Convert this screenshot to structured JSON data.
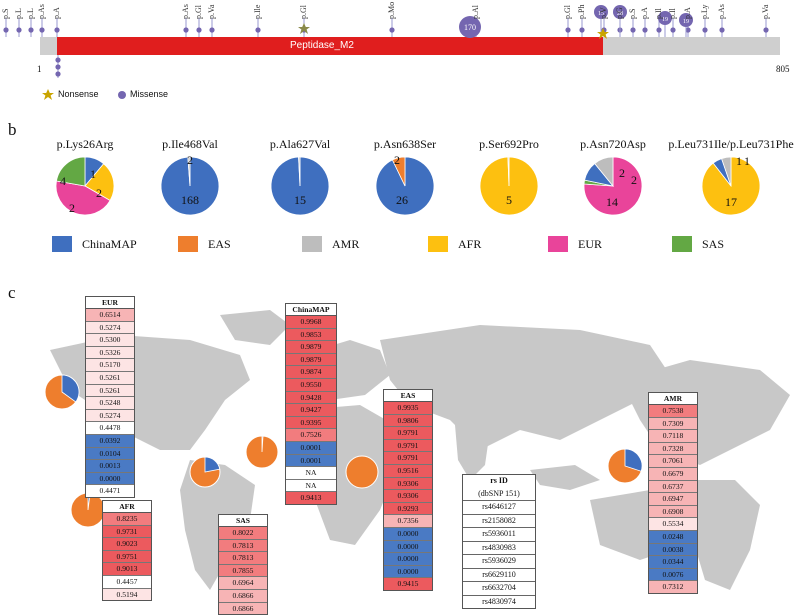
{
  "panel_a": {
    "domain_label": "Peptidase_M2",
    "start": "1",
    "end": "805",
    "legend": {
      "nonsense": "Nonsense",
      "missense": "Missense"
    },
    "top_labels": [
      "p.S",
      "p.L",
      "p.L",
      "p.As",
      "p.A",
      "p.As",
      "p.Gl",
      "p.Va",
      "p.Ile",
      "p.Gl",
      "p.Mo",
      "p.Al",
      "p.Gl",
      "p.Ph",
      "p.V",
      "p.G",
      "p.S",
      "p.A",
      "p.Il",
      "p.Il",
      "p.A",
      "p.Ly",
      "p.As",
      "p.Va"
    ],
    "bubble_counts": [
      "170",
      "15",
      "28",
      "19",
      "19"
    ],
    "colors": {
      "domain": "#e01e1e",
      "backbone": "#cfcfcf",
      "missense": "#7466b0",
      "nonsense": "#c9a400"
    }
  },
  "panel_b": {
    "letter": "b",
    "pies": [
      {
        "title": "p.Lys26Arg",
        "labels": [
          "1",
          "2",
          "2",
          "4"
        ]
      },
      {
        "title": "p.Ile468Val",
        "labels": [
          "2",
          "168"
        ]
      },
      {
        "title": "p.Ala627Val",
        "labels": [
          "15"
        ]
      },
      {
        "title": "p.Asn638Ser",
        "labels": [
          "2",
          "26"
        ]
      },
      {
        "title": "p.Ser692Pro",
        "labels": [
          "5"
        ]
      },
      {
        "title": "p.Asn720Asp",
        "labels": [
          "2",
          "2",
          "14"
        ]
      },
      {
        "title": "p.Leu731Ile/p.Leu731Phe",
        "labels": [
          "1",
          "1",
          "17"
        ]
      }
    ],
    "legend": [
      {
        "name": "ChinaMAP",
        "color": "#3f6fbf"
      },
      {
        "name": "EAS",
        "color": "#ee7e2d"
      },
      {
        "name": "AMR",
        "color": "#bdbdbd"
      },
      {
        "name": "AFR",
        "color": "#fdc010"
      },
      {
        "name": "EUR",
        "color": "#e9449a"
      },
      {
        "name": "SAS",
        "color": "#63a844"
      }
    ]
  },
  "panel_c": {
    "letter": "c",
    "tables": [
      {
        "key": "eur",
        "header": "EUR",
        "values": [
          "0.6514",
          "0.5274",
          "0.5300",
          "0.5326",
          "0.5170",
          "0.5261",
          "0.5261",
          "0.5248",
          "0.5274",
          "0.4478",
          "0.0392",
          "0.0104",
          "0.0013",
          "0.0000",
          "0.4471"
        ]
      },
      {
        "key": "china",
        "header": "ChinaMAP",
        "values": [
          "0.9968",
          "0.9853",
          "0.9879",
          "0.9879",
          "0.9874",
          "0.9550",
          "0.9428",
          "0.9427",
          "0.9395",
          "0.7526",
          "0.0001",
          "0.0001",
          "NA",
          "NA",
          "0.9413"
        ]
      },
      {
        "key": "eas",
        "header": "EAS",
        "values": [
          "0.9935",
          "0.9806",
          "0.9791",
          "0.9791",
          "0.9791",
          "0.9516",
          "0.9306",
          "0.9306",
          "0.9293",
          "0.7356",
          "0.0000",
          "0.0000",
          "0.0000",
          "0.0000",
          "0.9415"
        ]
      },
      {
        "key": "amr",
        "header": "AMR",
        "values": [
          "0.7538",
          "0.7309",
          "0.7118",
          "0.7328",
          "0.7061",
          "0.6679",
          "0.6737",
          "0.6947",
          "0.6908",
          "0.5534",
          "0.0248",
          "0.0038",
          "0.0344",
          "0.0076",
          "0.7312"
        ]
      },
      {
        "key": "afr",
        "header": "AFR",
        "values": [
          "0.8235",
          "0.9731",
          "0.9023",
          "0.9751",
          "0.9013",
          "0.4457",
          "0.5194"
        ]
      },
      {
        "key": "sas",
        "header": "SAS",
        "values": [
          "0.8022",
          "0.7813",
          "0.7813",
          "0.7855",
          "0.6964",
          "0.6866",
          "0.6866"
        ]
      }
    ],
    "rs_table": {
      "header1": "rs ID",
      "header2": "(dbSNP 151)",
      "ids": [
        "rs4646127",
        "rs2158082",
        "rs5936011",
        "rs4830983",
        "rs5936029",
        "rs6629110",
        "rs6632704",
        "rs4830974"
      ]
    }
  }
}
